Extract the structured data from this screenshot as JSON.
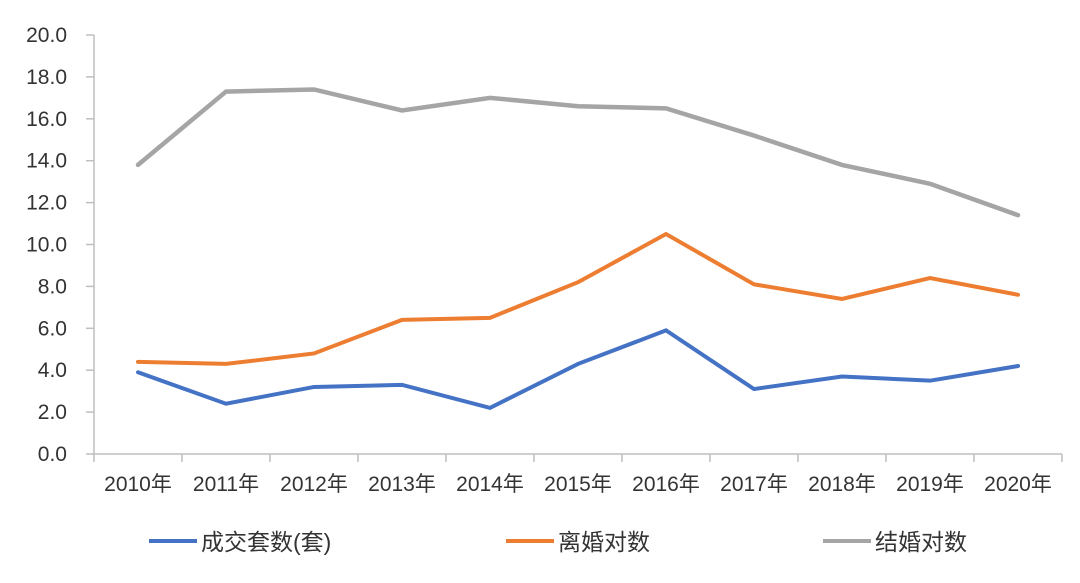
{
  "chart_data": {
    "type": "line",
    "title": "",
    "xlabel": "",
    "ylabel": "",
    "background_color": "#ffffff",
    "axis_color": "#bfbfbf",
    "text_color": "#333333",
    "grid": false,
    "legend_position": "bottom",
    "categories": [
      "2010年",
      "2011年",
      "2012年",
      "2013年",
      "2014年",
      "2015年",
      "2016年",
      "2017年",
      "2018年",
      "2019年",
      "2020年"
    ],
    "series": [
      {
        "name": "成交套数(套)",
        "color": "#4472c4",
        "values": [
          3.9,
          2.4,
          3.2,
          3.3,
          2.2,
          4.3,
          5.9,
          3.1,
          3.7,
          3.5,
          4.2
        ]
      },
      {
        "name": "离婚对数",
        "color": "#ed7d31",
        "values": [
          4.4,
          4.3,
          4.8,
          6.4,
          6.5,
          8.2,
          10.5,
          8.1,
          7.4,
          8.4,
          7.6
        ]
      },
      {
        "name": "结婚对数",
        "color": "#a5a5a5",
        "values": [
          13.8,
          17.3,
          17.4,
          16.4,
          17.0,
          16.6,
          16.5,
          15.2,
          13.8,
          12.9,
          11.4
        ]
      }
    ],
    "y_axis": {
      "min": 0,
      "max": 20,
      "step": 2,
      "tick_labels": [
        "0.0",
        "2.0",
        "4.0",
        "6.0",
        "8.0",
        "10.0",
        "12.0",
        "14.0",
        "16.0",
        "18.0",
        "20.0"
      ]
    }
  }
}
